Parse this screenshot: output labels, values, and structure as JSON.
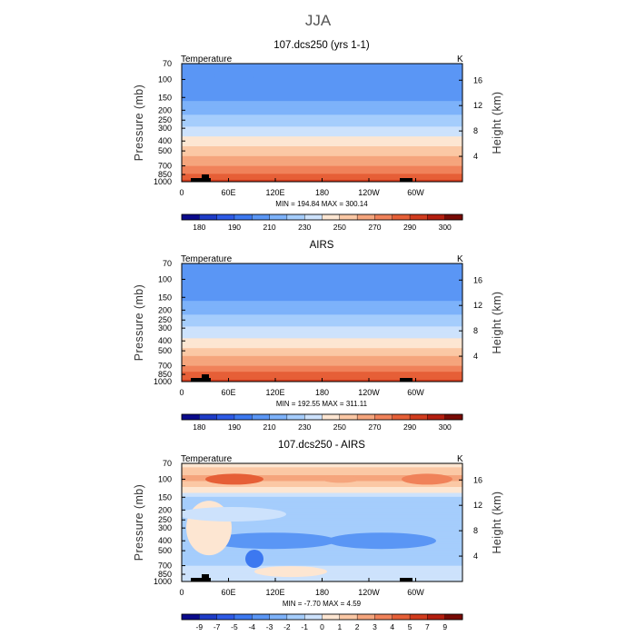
{
  "suptitle": "JJA",
  "chart_data": [
    {
      "type": "heatmap",
      "title": "107.dcs250 (yrs 1-1)",
      "variable": "Temperature",
      "units": "K",
      "ylabel_left": "Pressure (mb)",
      "ylabel_right": "Height (km)",
      "x_ticks": [
        "0",
        "60E",
        "120E",
        "180",
        "120W",
        "60W"
      ],
      "pressure_ticks": [
        "70",
        "100",
        "150",
        "200",
        "250",
        "300",
        "400",
        "500",
        "700",
        "850",
        "1000"
      ],
      "height_ticks": [
        "4",
        "8",
        "12",
        "16"
      ],
      "min": "194.84",
      "max": "300.14",
      "minmax_text": "MIN = 194.84   MAX = 300.14",
      "colorbar_labels": [
        "180",
        "190",
        "210",
        "230",
        "250",
        "270",
        "290",
        "300"
      ],
      "contour_levels": [
        180,
        185,
        190,
        200,
        210,
        220,
        230,
        240,
        250,
        260,
        270,
        280,
        290,
        295,
        300
      ],
      "profile": {
        "pressure_mb": [
          70,
          100,
          150,
          200,
          250,
          300,
          400,
          500,
          700,
          850,
          1000
        ],
        "temperature_k": [
          203,
          200,
          207,
          216,
          225,
          232,
          244,
          255,
          270,
          282,
          292
        ]
      }
    },
    {
      "type": "heatmap",
      "title": "AIRS",
      "variable": "Temperature",
      "units": "K",
      "ylabel_left": "Pressure (mb)",
      "ylabel_right": "Height (km)",
      "x_ticks": [
        "0",
        "60E",
        "120E",
        "180",
        "120W",
        "60W"
      ],
      "pressure_ticks": [
        "70",
        "100",
        "150",
        "200",
        "250",
        "300",
        "400",
        "500",
        "700",
        "850",
        "1000"
      ],
      "height_ticks": [
        "4",
        "8",
        "12",
        "16"
      ],
      "min": "192.55",
      "max": "311.11",
      "minmax_text": "MIN = 192.55   MAX = 311.11",
      "colorbar_labels": [
        "180",
        "190",
        "210",
        "230",
        "250",
        "270",
        "290",
        "300"
      ],
      "contour_levels": [
        180,
        185,
        190,
        200,
        210,
        220,
        230,
        240,
        250,
        260,
        270,
        280,
        290,
        295,
        300
      ],
      "profile": {
        "pressure_mb": [
          70,
          100,
          150,
          200,
          250,
          300,
          400,
          500,
          700,
          850,
          1000
        ],
        "temperature_k": [
          204,
          200,
          207,
          216,
          224,
          231,
          243,
          254,
          270,
          283,
          294
        ]
      }
    },
    {
      "type": "heatmap",
      "title": "107.dcs250 - AIRS",
      "variable": "Temperature",
      "units": "K",
      "ylabel_left": "Pressure (mb)",
      "ylabel_right": "Height (km)",
      "x_ticks": [
        "0",
        "60E",
        "120E",
        "180",
        "120W",
        "60W"
      ],
      "pressure_ticks": [
        "70",
        "100",
        "150",
        "200",
        "250",
        "300",
        "400",
        "500",
        "700",
        "850",
        "1000"
      ],
      "height_ticks": [
        "4",
        "8",
        "12",
        "16"
      ],
      "min": "-7.70",
      "max": "4.59",
      "minmax_text": "MIN = -7.70   MAX =  4.59",
      "colorbar_labels": [
        "-9",
        "-7",
        "-5",
        "-4",
        "-3",
        "-2",
        "-1",
        "0",
        "1",
        "2",
        "3",
        "4",
        "5",
        "7",
        "9"
      ],
      "contour_levels": [
        -9,
        -7,
        -5,
        -4,
        -3,
        -2,
        -1,
        0,
        1,
        2,
        3,
        4,
        5,
        7,
        9
      ],
      "profile": {
        "pressure_mb": [
          70,
          100,
          150,
          200,
          250,
          300,
          400,
          500,
          700,
          850,
          1000
        ],
        "difference_k": [
          0.5,
          2.5,
          -1,
          -2,
          -1.5,
          -1,
          -1.5,
          -2,
          -1,
          -0.5,
          -1
        ]
      }
    }
  ],
  "palettes": {
    "temperature": [
      "#0a0a8c",
      "#1e3cc8",
      "#2d5ae6",
      "#3c78f0",
      "#5a96f5",
      "#7db2fa",
      "#a5cdfc",
      "#cde2fc",
      "#fde6d2",
      "#fbc8a5",
      "#f5a57d",
      "#f0825a",
      "#e65f37",
      "#d23c1e",
      "#b41e0f",
      "#780a05"
    ],
    "difference": [
      "#0a0a8c",
      "#1e3cc8",
      "#2d5ae6",
      "#3c78f0",
      "#5a96f5",
      "#7db2fa",
      "#a5cdfc",
      "#cde2fc",
      "#fde6d2",
      "#fbc8a5",
      "#f5a57d",
      "#f0825a",
      "#e65f37",
      "#d23c1e",
      "#b41e0f",
      "#780a05"
    ]
  }
}
